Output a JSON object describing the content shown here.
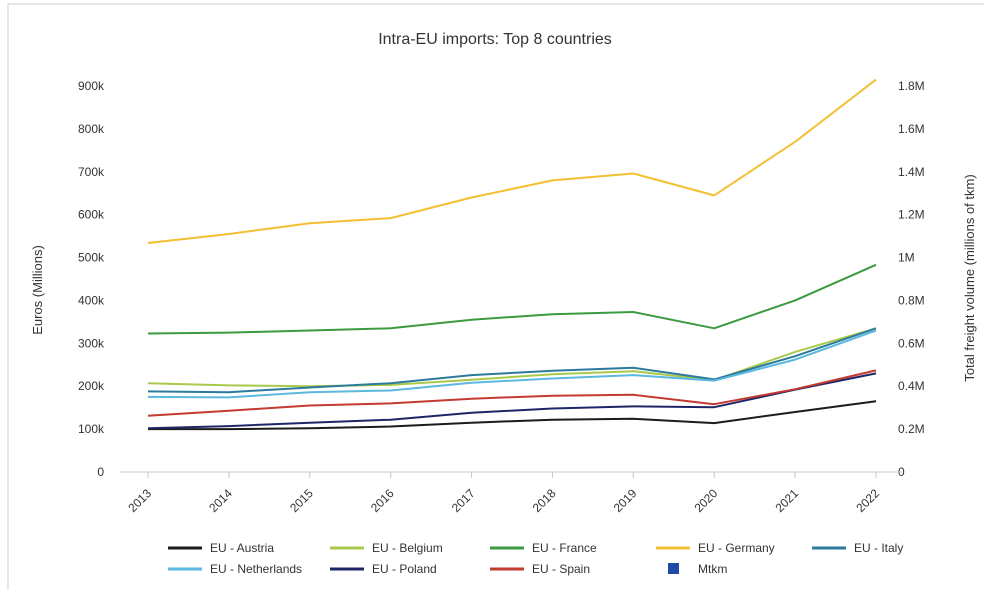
{
  "chart_data": {
    "type": "line",
    "title": "Intra-EU imports: Top 8 countries",
    "ylabel": "Euros (Millions)",
    "y2label": "Total freight volume (millions of tkm)",
    "categories": [
      "2013",
      "2014",
      "2015",
      "2016",
      "2017",
      "2018",
      "2019",
      "2020",
      "2021",
      "2022"
    ],
    "ylim": [
      0,
      900000
    ],
    "y2lim": [
      0,
      1800000
    ],
    "yticks": [
      "0",
      "100k",
      "200k",
      "300k",
      "400k",
      "500k",
      "600k",
      "700k",
      "800k",
      "900k"
    ],
    "y2ticks": [
      "0",
      "0.2M",
      "0.4M",
      "0.6M",
      "0.8M",
      "1M",
      "1.2M",
      "1.4M",
      "1.6M",
      "1.8M"
    ],
    "grid": false,
    "legend_position": "bottom",
    "series": [
      {
        "name": "EU - Austria",
        "color": "#1c1c1c",
        "values": [
          100000,
          100000,
          102000,
          106000,
          115000,
          122000,
          124000,
          114000,
          140000,
          165000
        ]
      },
      {
        "name": "EU - Belgium",
        "color": "#a8c94a",
        "values": [
          207000,
          202000,
          200000,
          203000,
          215000,
          228000,
          235000,
          214000,
          280000,
          335000
        ]
      },
      {
        "name": "EU - France",
        "color": "#3c9a40",
        "values": [
          323000,
          325000,
          330000,
          335000,
          355000,
          368000,
          373000,
          335000,
          400000,
          483000
        ]
      },
      {
        "name": "EU - Germany",
        "color": "#f2c030",
        "values": [
          534000,
          555000,
          580000,
          592000,
          640000,
          680000,
          696000,
          645000,
          770000,
          915000
        ]
      },
      {
        "name": "EU - Italy",
        "color": "#2c7a9c",
        "values": [
          188000,
          186000,
          197000,
          207000,
          226000,
          236000,
          243000,
          216000,
          270000,
          335000
        ]
      },
      {
        "name": "EU - Netherlands",
        "color": "#5bb8e0",
        "values": [
          175000,
          174000,
          186000,
          190000,
          208000,
          218000,
          226000,
          213000,
          262000,
          330000
        ]
      },
      {
        "name": "EU - Poland",
        "color": "#1f2668",
        "values": [
          102000,
          107000,
          115000,
          122000,
          138000,
          148000,
          153000,
          151000,
          192000,
          230000
        ]
      },
      {
        "name": "EU - Spain",
        "color": "#c23a30",
        "values": [
          131000,
          143000,
          155000,
          160000,
          171000,
          178000,
          180000,
          158000,
          193000,
          237000
        ]
      }
    ],
    "extra_legend": {
      "name": "Mtkm",
      "color": "#1f4aa8"
    }
  }
}
